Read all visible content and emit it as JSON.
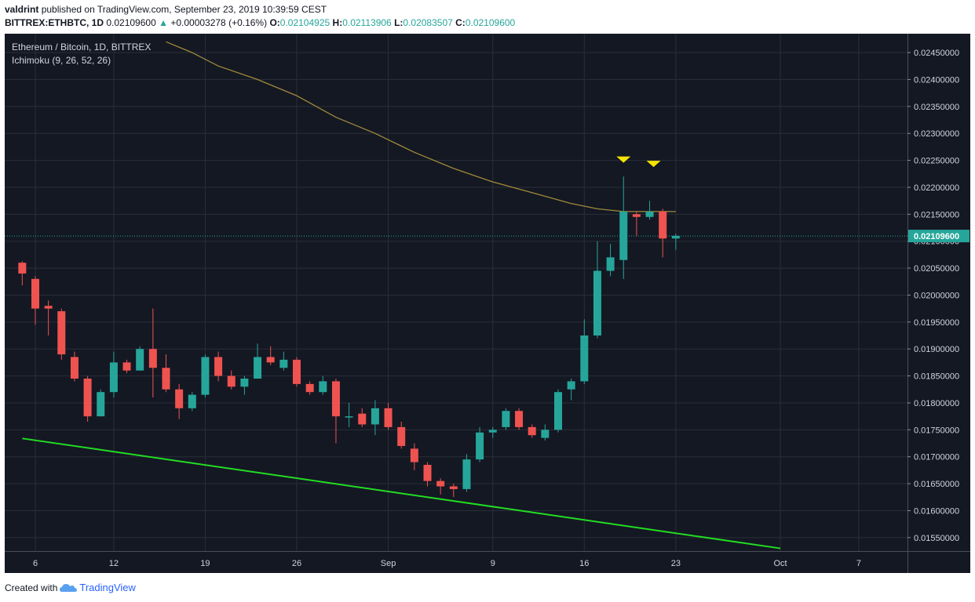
{
  "header": {
    "author": "valdrint",
    "published_text": "published on TradingView.com, September 23, 2019 10:39:59 CEST",
    "symbol": "BITTREX:ETHBTC, 1D",
    "last": "0.02109600",
    "change_arrow": "▲",
    "change": "+0.00003278 (+0.16%)",
    "o_label": "O:",
    "o_value": "0.02104925",
    "h_label": "H:",
    "h_value": "0.02113906",
    "l_label": "L:",
    "l_value": "0.02083507",
    "c_label": "C:",
    "c_value": "0.02109600"
  },
  "footer": {
    "created_with": "Created with",
    "brand": "TradingView"
  },
  "colors": {
    "background": "#141823",
    "grid": "#2a2e39",
    "up": "#26a69a",
    "down": "#ef5350",
    "ma_line": "#a08a3a",
    "trend_line": "#22dd22",
    "marker": "#f5e400",
    "price_line": "#26a69a"
  },
  "chart_data": {
    "type": "candlestick",
    "title": "Ethereum / Bitcoin, 1D, BITTREX",
    "indicator_label": "Ichimoku (9, 26, 52, 26)",
    "ylim": [
      0.01525,
      0.02485
    ],
    "y_ticks": [
      "0.02450000",
      "0.02400000",
      "0.02350000",
      "0.02300000",
      "0.02250000",
      "0.02200000",
      "0.02150000",
      "0.02100000",
      "0.02050000",
      "0.02000000",
      "0.01950000",
      "0.01900000",
      "0.01850000",
      "0.01800000",
      "0.01750000",
      "0.01700000",
      "0.01650000",
      "0.01600000",
      "0.01550000"
    ],
    "x_ticks": [
      {
        "label": "6",
        "day": 5
      },
      {
        "label": "12",
        "day": 11
      },
      {
        "label": "19",
        "day": 18
      },
      {
        "label": "26",
        "day": 25
      },
      {
        "label": "Sep",
        "day": 32
      },
      {
        "label": "9",
        "day": 40
      },
      {
        "label": "16",
        "day": 47
      },
      {
        "label": "23",
        "day": 54
      },
      {
        "label": "Oct",
        "day": 62
      },
      {
        "label": "7",
        "day": 68
      }
    ],
    "current_price": "0.02109600",
    "current_value": 0.021096,
    "candles": [
      {
        "day": 4,
        "o": 0.0206,
        "h": 0.02063,
        "l": 0.02018,
        "c": 0.0204
      },
      {
        "day": 5,
        "o": 0.0203,
        "h": 0.02035,
        "l": 0.01945,
        "c": 0.01975
      },
      {
        "day": 6,
        "o": 0.0198,
        "h": 0.0199,
        "l": 0.01925,
        "c": 0.01975
      },
      {
        "day": 7,
        "o": 0.0197,
        "h": 0.01975,
        "l": 0.0188,
        "c": 0.0189
      },
      {
        "day": 8,
        "o": 0.01885,
        "h": 0.01895,
        "l": 0.0184,
        "c": 0.01845
      },
      {
        "day": 9,
        "o": 0.01845,
        "h": 0.0185,
        "l": 0.01765,
        "c": 0.01775
      },
      {
        "day": 10,
        "o": 0.01775,
        "h": 0.01825,
        "l": 0.01775,
        "c": 0.0182
      },
      {
        "day": 11,
        "o": 0.0182,
        "h": 0.01895,
        "l": 0.0181,
        "c": 0.01875
      },
      {
        "day": 12,
        "o": 0.01875,
        "h": 0.0188,
        "l": 0.01855,
        "c": 0.0186
      },
      {
        "day": 13,
        "o": 0.0186,
        "h": 0.01905,
        "l": 0.0186,
        "c": 0.019
      },
      {
        "day": 14,
        "o": 0.019,
        "h": 0.01975,
        "l": 0.0181,
        "c": 0.01865
      },
      {
        "day": 15,
        "o": 0.01865,
        "h": 0.0189,
        "l": 0.0182,
        "c": 0.01825
      },
      {
        "day": 16,
        "o": 0.01825,
        "h": 0.01835,
        "l": 0.0177,
        "c": 0.0179
      },
      {
        "day": 17,
        "o": 0.0179,
        "h": 0.0182,
        "l": 0.01785,
        "c": 0.01815
      },
      {
        "day": 18,
        "o": 0.01815,
        "h": 0.0189,
        "l": 0.0181,
        "c": 0.01885
      },
      {
        "day": 19,
        "o": 0.01885,
        "h": 0.01895,
        "l": 0.0184,
        "c": 0.0185
      },
      {
        "day": 20,
        "o": 0.0185,
        "h": 0.0186,
        "l": 0.01825,
        "c": 0.0183
      },
      {
        "day": 21,
        "o": 0.0183,
        "h": 0.0185,
        "l": 0.01815,
        "c": 0.01845
      },
      {
        "day": 22,
        "o": 0.01845,
        "h": 0.0191,
        "l": 0.01845,
        "c": 0.01885
      },
      {
        "day": 23,
        "o": 0.01885,
        "h": 0.01905,
        "l": 0.0187,
        "c": 0.01875
      },
      {
        "day": 24,
        "o": 0.01865,
        "h": 0.01895,
        "l": 0.0186,
        "c": 0.0188
      },
      {
        "day": 25,
        "o": 0.0188,
        "h": 0.01885,
        "l": 0.0183,
        "c": 0.01835
      },
      {
        "day": 26,
        "o": 0.01835,
        "h": 0.0184,
        "l": 0.01815,
        "c": 0.0182
      },
      {
        "day": 27,
        "o": 0.0182,
        "h": 0.0185,
        "l": 0.01815,
        "c": 0.0184
      },
      {
        "day": 28,
        "o": 0.0184,
        "h": 0.01845,
        "l": 0.01725,
        "c": 0.01775
      },
      {
        "day": 29,
        "o": 0.01775,
        "h": 0.018,
        "l": 0.01755,
        "c": 0.01775
      },
      {
        "day": 30,
        "o": 0.0178,
        "h": 0.0179,
        "l": 0.01755,
        "c": 0.0176
      },
      {
        "day": 31,
        "o": 0.0176,
        "h": 0.01805,
        "l": 0.0174,
        "c": 0.0179
      },
      {
        "day": 32,
        "o": 0.0179,
        "h": 0.018,
        "l": 0.0175,
        "c": 0.01755
      },
      {
        "day": 33,
        "o": 0.01755,
        "h": 0.01765,
        "l": 0.01715,
        "c": 0.0172
      },
      {
        "day": 34,
        "o": 0.01715,
        "h": 0.01725,
        "l": 0.01675,
        "c": 0.0169
      },
      {
        "day": 35,
        "o": 0.01685,
        "h": 0.0169,
        "l": 0.01645,
        "c": 0.01655
      },
      {
        "day": 36,
        "o": 0.01655,
        "h": 0.0166,
        "l": 0.0163,
        "c": 0.01645
      },
      {
        "day": 37,
        "o": 0.01645,
        "h": 0.0165,
        "l": 0.01625,
        "c": 0.0164
      },
      {
        "day": 38,
        "o": 0.0164,
        "h": 0.01705,
        "l": 0.01635,
        "c": 0.01695
      },
      {
        "day": 39,
        "o": 0.01695,
        "h": 0.01755,
        "l": 0.0169,
        "c": 0.01745
      },
      {
        "day": 40,
        "o": 0.01745,
        "h": 0.01755,
        "l": 0.01735,
        "c": 0.0175
      },
      {
        "day": 41,
        "o": 0.01755,
        "h": 0.0179,
        "l": 0.0175,
        "c": 0.01785
      },
      {
        "day": 42,
        "o": 0.01785,
        "h": 0.0179,
        "l": 0.0175,
        "c": 0.01755
      },
      {
        "day": 43,
        "o": 0.01755,
        "h": 0.0176,
        "l": 0.01735,
        "c": 0.0174
      },
      {
        "day": 44,
        "o": 0.01735,
        "h": 0.0176,
        "l": 0.0173,
        "c": 0.0175
      },
      {
        "day": 45,
        "o": 0.0175,
        "h": 0.01825,
        "l": 0.01745,
        "c": 0.0182
      },
      {
        "day": 46,
        "o": 0.01825,
        "h": 0.01845,
        "l": 0.01805,
        "c": 0.0184
      },
      {
        "day": 47,
        "o": 0.0184,
        "h": 0.01955,
        "l": 0.01835,
        "c": 0.01925
      },
      {
        "day": 48,
        "o": 0.01925,
        "h": 0.021,
        "l": 0.0192,
        "c": 0.02045
      },
      {
        "day": 49,
        "o": 0.02045,
        "h": 0.02095,
        "l": 0.02035,
        "c": 0.0207
      },
      {
        "day": 50,
        "o": 0.02065,
        "h": 0.0222,
        "l": 0.0203,
        "c": 0.02155
      },
      {
        "day": 51,
        "o": 0.0215,
        "h": 0.02155,
        "l": 0.0211,
        "c": 0.02145
      },
      {
        "day": 52,
        "o": 0.02145,
        "h": 0.02175,
        "l": 0.0214,
        "c": 0.02155
      },
      {
        "day": 53,
        "o": 0.02155,
        "h": 0.0216,
        "l": 0.0207,
        "c": 0.02105
      },
      {
        "day": 54,
        "o": 0.02105,
        "h": 0.02114,
        "l": 0.02084,
        "c": 0.0211
      }
    ],
    "ma_line": [
      {
        "day": 15,
        "v": 0.0247
      },
      {
        "day": 17,
        "v": 0.0245
      },
      {
        "day": 19,
        "v": 0.02425
      },
      {
        "day": 22,
        "v": 0.024
      },
      {
        "day": 25,
        "v": 0.0237
      },
      {
        "day": 28,
        "v": 0.0233
      },
      {
        "day": 31,
        "v": 0.023
      },
      {
        "day": 34,
        "v": 0.02265
      },
      {
        "day": 37,
        "v": 0.02235
      },
      {
        "day": 40,
        "v": 0.0221
      },
      {
        "day": 43,
        "v": 0.0219
      },
      {
        "day": 46,
        "v": 0.0217
      },
      {
        "day": 48,
        "v": 0.0216
      },
      {
        "day": 50,
        "v": 0.02155
      },
      {
        "day": 54,
        "v": 0.02155
      }
    ],
    "trend_line": [
      {
        "day": 4,
        "v": 0.01734
      },
      {
        "day": 62,
        "v": 0.0153
      }
    ],
    "markers": [
      {
        "day": 50,
        "v": 0.0225
      },
      {
        "day": 52.3,
        "v": 0.02242
      }
    ]
  }
}
